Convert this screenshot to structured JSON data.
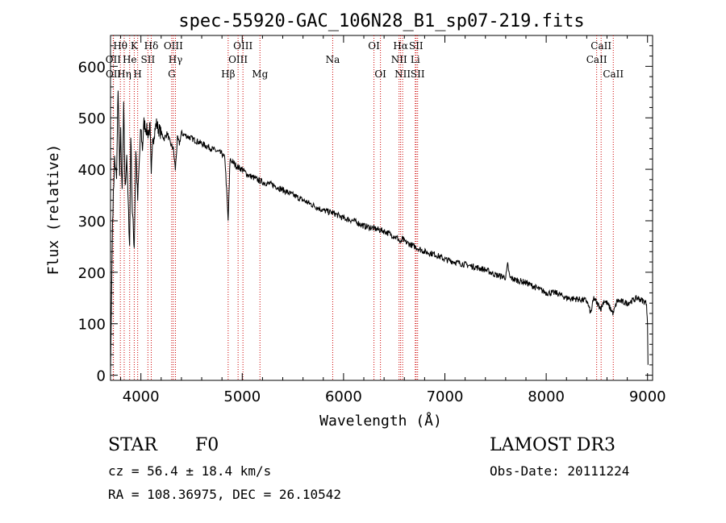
{
  "chart_data": {
    "type": "line",
    "title": "spec-55920-GAC_106N28_B1_sp07-219.fits",
    "xlabel": "Wavelength (Å)",
    "ylabel": "Flux (relative)",
    "xlim": [
      3700,
      9050
    ],
    "ylim": [
      -10,
      660
    ],
    "xticks": [
      4000,
      5000,
      6000,
      7000,
      8000,
      9000
    ],
    "yticks": [
      0,
      100,
      200,
      300,
      400,
      500,
      600
    ],
    "series": [
      {
        "name": "flux",
        "x": [
          3700,
          3720,
          3740,
          3760,
          3775,
          3790,
          3800,
          3815,
          3830,
          3845,
          3860,
          3875,
          3889,
          3900,
          3915,
          3934,
          3950,
          3968,
          3985,
          4000,
          4015,
          4030,
          4050,
          4070,
          4090,
          4102,
          4115,
          4130,
          4150,
          4170,
          4200,
          4230,
          4260,
          4290,
          4320,
          4340,
          4360,
          4380,
          4400,
          4450,
          4500,
          4550,
          4600,
          4650,
          4700,
          4750,
          4800,
          4830,
          4861,
          4880,
          4900,
          4950,
          5000,
          5050,
          5100,
          5150,
          5200,
          5300,
          5400,
          5500,
          5600,
          5700,
          5800,
          5900,
          6000,
          6100,
          6200,
          6300,
          6400,
          6500,
          6540,
          6563,
          6580,
          6600,
          6650,
          6700,
          6750,
          6800,
          6900,
          7000,
          7100,
          7200,
          7300,
          7400,
          7500,
          7600,
          7620,
          7640,
          7700,
          7800,
          7900,
          8000,
          8100,
          8200,
          8300,
          8400,
          8440,
          8470,
          8500,
          8542,
          8570,
          8600,
          8662,
          8700,
          8800,
          8900,
          8950,
          8990,
          9000,
          9005
        ],
        "values": [
          5,
          300,
          420,
          380,
          560,
          400,
          470,
          350,
          520,
          360,
          430,
          330,
          250,
          470,
          320,
          250,
          440,
          340,
          420,
          480,
          440,
          490,
          480,
          470,
          480,
          380,
          470,
          460,
          490,
          480,
          470,
          460,
          470,
          450,
          440,
          400,
          460,
          450,
          470,
          465,
          460,
          455,
          450,
          445,
          440,
          435,
          430,
          420,
          300,
          420,
          415,
          405,
          400,
          390,
          385,
          380,
          375,
          370,
          360,
          350,
          340,
          330,
          320,
          315,
          305,
          300,
          290,
          285,
          280,
          270,
          265,
          255,
          265,
          260,
          255,
          250,
          245,
          240,
          235,
          225,
          220,
          215,
          210,
          205,
          195,
          190,
          215,
          190,
          185,
          180,
          170,
          160,
          160,
          150,
          148,
          145,
          120,
          150,
          140,
          130,
          145,
          140,
          120,
          145,
          140,
          150,
          145,
          140,
          100,
          20
        ]
      }
    ],
    "lines": [
      {
        "label": "Hθ",
        "x": 3797,
        "row": 1
      },
      {
        "label": "OII",
        "x": 3727,
        "row": 2
      },
      {
        "label": "OII",
        "x": 3729,
        "row": 3
      },
      {
        "label": "Hη",
        "x": 3835,
        "row": 3
      },
      {
        "label": "He",
        "x": 3889,
        "row": 2
      },
      {
        "label": "K",
        "x": 3934,
        "row": 1
      },
      {
        "label": "H",
        "x": 3968,
        "row": 3
      },
      {
        "label": "SII",
        "x": 4069,
        "row": 2
      },
      {
        "label": "Hδ",
        "x": 4102,
        "row": 1
      },
      {
        "label": "OIII",
        "x": 4320,
        "row": 1
      },
      {
        "label": "Hγ",
        "x": 4341,
        "row": 2
      },
      {
        "label": "G",
        "x": 4304,
        "row": 3
      },
      {
        "label": "Hβ",
        "x": 4861,
        "row": 3
      },
      {
        "label": "OIII",
        "x": 5007,
        "row": 1
      },
      {
        "label": "OIII",
        "x": 4959,
        "row": 2
      },
      {
        "label": "Mg",
        "x": 5175,
        "row": 3
      },
      {
        "label": "Na",
        "x": 5893,
        "row": 2
      },
      {
        "label": "OI",
        "x": 6300,
        "row": 1
      },
      {
        "label": "OI",
        "x": 6364,
        "row": 3
      },
      {
        "label": "Hα",
        "x": 6563,
        "row": 1
      },
      {
        "label": "NII",
        "x": 6548,
        "row": 2
      },
      {
        "label": "NII",
        "x": 6583,
        "row": 3
      },
      {
        "label": "SII",
        "x": 6716,
        "row": 1
      },
      {
        "label": "Li",
        "x": 6708,
        "row": 2
      },
      {
        "label": "SII",
        "x": 6731,
        "row": 3
      },
      {
        "label": "CaII",
        "x": 8542,
        "row": 1
      },
      {
        "label": "CaII",
        "x": 8498,
        "row": 2
      },
      {
        "label": "CaII",
        "x": 8662,
        "row": 3
      }
    ]
  },
  "info": {
    "class_label": "STAR",
    "subclass": "F0",
    "survey": "LAMOST DR3",
    "cz": "cz = 56.4 ± 18.4 km/s",
    "obs_date": "Obs-Date: 20111224",
    "coords": "RA = 108.36975, DEC =  26.10542"
  }
}
